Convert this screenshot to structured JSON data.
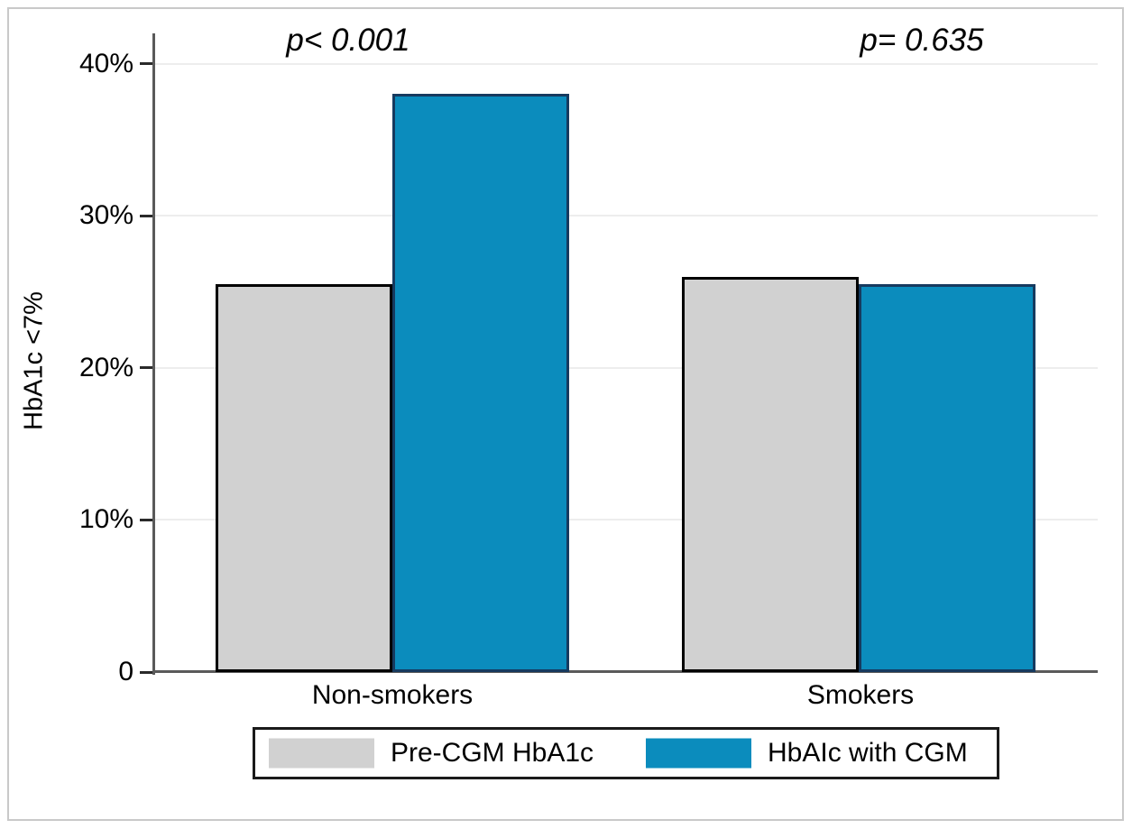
{
  "chart_data": {
    "type": "bar",
    "title": "",
    "xlabel": "",
    "ylabel": "HbA1c <7%",
    "categories": [
      "Non-smokers",
      "Smokers"
    ],
    "series": [
      {
        "name": "Pre-CGM HbA1c",
        "fill": "#d1d1d1",
        "border": "#000000",
        "values": [
          25.5,
          26
        ]
      },
      {
        "name": "HbAIc with CGM",
        "fill": "#0b8cbd",
        "border": "#163a5f",
        "values": [
          38,
          25.5
        ]
      }
    ],
    "annotations": [
      {
        "text": "p< 0.001",
        "category": "Non-smokers"
      },
      {
        "text": "p= 0.635",
        "category": "Smokers"
      }
    ],
    "y_axis": {
      "max": 42,
      "ticks": [
        {
          "value": 0,
          "label": "0"
        },
        {
          "value": 10,
          "label": "10%"
        },
        {
          "value": 20,
          "label": "20%"
        },
        {
          "value": 30,
          "label": "30%"
        },
        {
          "value": 40,
          "label": "40%"
        }
      ]
    },
    "ylim": [
      0,
      42
    ],
    "grid": true,
    "legend_position": "bottom"
  },
  "colors": {
    "background": "#ffffff",
    "figure_border": "#c9c9c9",
    "grid": "#ededed",
    "axis": "#5a5a5a",
    "tick": "#2a2a2a",
    "legend_border": "#1a1a1a",
    "text": "#000000"
  }
}
